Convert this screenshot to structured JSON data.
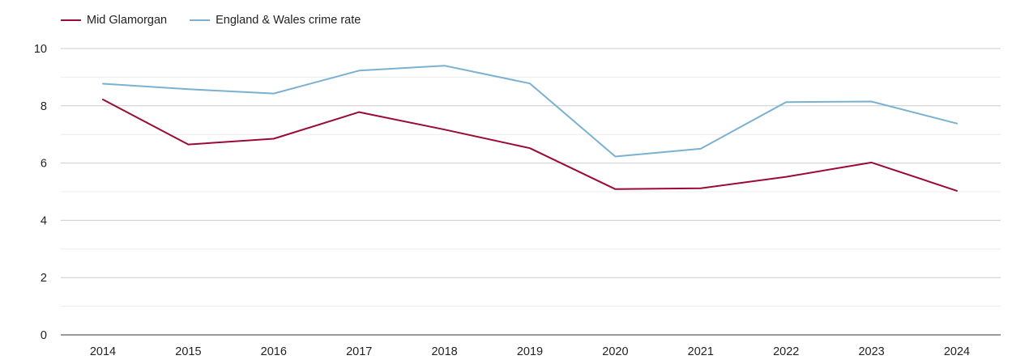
{
  "chart_data": {
    "type": "line",
    "title": "",
    "xlabel": "",
    "ylabel": "",
    "categories": [
      "2014",
      "2015",
      "2016",
      "2017",
      "2018",
      "2019",
      "2020",
      "2021",
      "2022",
      "2023",
      "2024"
    ],
    "ylim": [
      0,
      10
    ],
    "yticks": [
      "0",
      "2",
      "4",
      "6",
      "8",
      "10"
    ],
    "grid": true,
    "legend_position": "top-left",
    "series": [
      {
        "name": "Mid Glamorgan",
        "color": "#9b0a33",
        "values": [
          8.22,
          6.65,
          6.85,
          7.78,
          7.17,
          6.52,
          5.09,
          5.12,
          5.52,
          6.02,
          5.03
        ]
      },
      {
        "name": "England & Wales crime rate",
        "color": "#7ab1d1",
        "values": [
          8.77,
          8.58,
          8.43,
          9.23,
          9.4,
          8.78,
          6.23,
          6.5,
          8.13,
          8.15,
          7.38
        ]
      }
    ]
  }
}
